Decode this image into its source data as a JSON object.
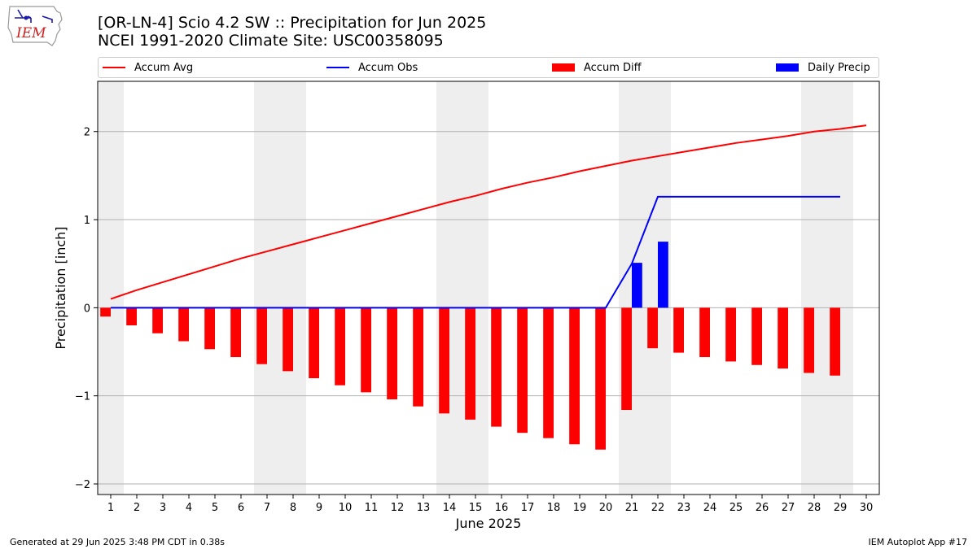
{
  "header": {
    "title_line1": "[OR-LN-4] Scio 4.2 SW :: Precipitation for Jun 2025",
    "title_line2": "NCEI 1991-2020 Climate Site: USC00358095"
  },
  "logo": {
    "text": "IEM",
    "icon": "iem-iowa-weather-logo"
  },
  "footer": {
    "left": "Generated at 29 Jun 2025 3:48 PM CDT in 0.38s",
    "right": "IEM Autoplot App #17"
  },
  "legend": {
    "placement": "top",
    "items": [
      {
        "label": "Accum Avg",
        "kind": "line",
        "color": "#ff0000"
      },
      {
        "label": "Accum Obs",
        "kind": "line",
        "color": "#0000ff"
      },
      {
        "label": "Accum Diff",
        "kind": "patch",
        "color": "#ff0000"
      },
      {
        "label": "Daily Precip",
        "kind": "patch",
        "color": "#0000ff"
      }
    ]
  },
  "colors": {
    "avg": "#ff0000",
    "obs": "#0000ff",
    "diff": "#ff0000",
    "daily": "#0000ff",
    "weekend_shade": "#eeeeee",
    "grid": "#b0b0b0"
  },
  "chart_data": {
    "type": "bar",
    "xlabel": "June 2025",
    "ylabel": "Precipitation [inch]",
    "ylim": [
      -2.12,
      2.57
    ],
    "xlim": [
      0.5,
      30.5
    ],
    "yticks": [
      -2,
      -1,
      0,
      1,
      2
    ],
    "ytick_labels": [
      "−2",
      "−1",
      "0",
      "1",
      "2"
    ],
    "xticks": [
      1,
      2,
      3,
      4,
      5,
      6,
      7,
      8,
      9,
      10,
      11,
      12,
      13,
      14,
      15,
      16,
      17,
      18,
      19,
      20,
      21,
      22,
      23,
      24,
      25,
      26,
      27,
      28,
      29,
      30
    ],
    "grid": "horizontal",
    "weekend_shading": [
      [
        0.5,
        1.5
      ],
      [
        6.5,
        8.5
      ],
      [
        13.5,
        15.5
      ],
      [
        20.5,
        22.5
      ],
      [
        27.5,
        29.5
      ]
    ],
    "series": [
      {
        "name": "Accum Avg",
        "type": "line",
        "x": [
          1,
          2,
          3,
          4,
          5,
          6,
          7,
          8,
          9,
          10,
          11,
          12,
          13,
          14,
          15,
          16,
          17,
          18,
          19,
          20,
          21,
          22,
          23,
          24,
          25,
          26,
          27,
          28,
          29,
          30
        ],
        "values": [
          0.1,
          0.2,
          0.29,
          0.38,
          0.47,
          0.56,
          0.64,
          0.72,
          0.8,
          0.88,
          0.96,
          1.04,
          1.12,
          1.2,
          1.27,
          1.35,
          1.42,
          1.48,
          1.55,
          1.61,
          1.67,
          1.72,
          1.77,
          1.82,
          1.87,
          1.91,
          1.95,
          2.0,
          2.03,
          2.07
        ]
      },
      {
        "name": "Accum Obs",
        "type": "line",
        "x": [
          1,
          2,
          3,
          4,
          5,
          6,
          7,
          8,
          9,
          10,
          11,
          12,
          13,
          14,
          15,
          16,
          17,
          18,
          19,
          20,
          21,
          22,
          23,
          24,
          25,
          26,
          27,
          28,
          29
        ],
        "values": [
          0,
          0,
          0,
          0,
          0,
          0,
          0,
          0,
          0,
          0,
          0,
          0,
          0,
          0,
          0,
          0,
          0,
          0,
          0,
          0,
          0.5,
          1.26,
          1.26,
          1.26,
          1.26,
          1.26,
          1.26,
          1.26,
          1.26
        ]
      },
      {
        "name": "Accum Diff",
        "type": "bar",
        "x": [
          1,
          2,
          3,
          4,
          5,
          6,
          7,
          8,
          9,
          10,
          11,
          12,
          13,
          14,
          15,
          16,
          17,
          18,
          19,
          20,
          21,
          22,
          23,
          24,
          25,
          26,
          27,
          28,
          29
        ],
        "values": [
          -0.1,
          -0.2,
          -0.29,
          -0.38,
          -0.47,
          -0.56,
          -0.64,
          -0.72,
          -0.8,
          -0.88,
          -0.96,
          -1.04,
          -1.12,
          -1.2,
          -1.27,
          -1.35,
          -1.42,
          -1.48,
          -1.55,
          -1.61,
          -1.16,
          -0.46,
          -0.51,
          -0.56,
          -0.61,
          -0.65,
          -0.69,
          -0.74,
          -0.77
        ]
      },
      {
        "name": "Daily Precip",
        "type": "bar",
        "x": [
          21,
          22
        ],
        "values": [
          0.51,
          0.75
        ]
      }
    ]
  }
}
